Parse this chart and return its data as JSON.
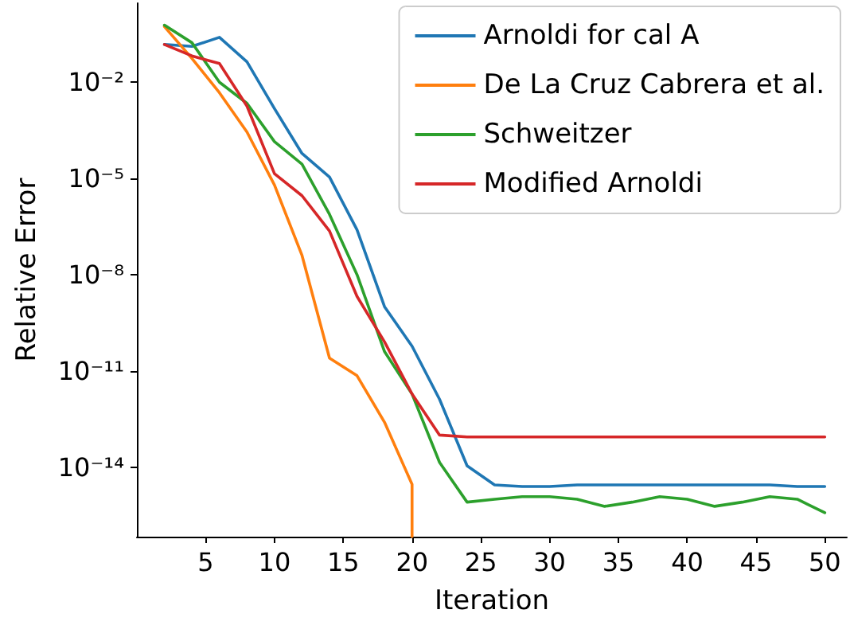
{
  "chart_data": {
    "type": "line",
    "xlabel": "Iteration",
    "ylabel": "Relative Error",
    "log": "y",
    "legend": "top right",
    "grid": false,
    "marker": "none",
    "line_style": "solid",
    "x": [
      2,
      4,
      6,
      8,
      10,
      12,
      14,
      16,
      18,
      20,
      22,
      24,
      26,
      28,
      30,
      32,
      34,
      36,
      38,
      40,
      42,
      44,
      46,
      48,
      50
    ],
    "xlim": [
      0,
      51.6
    ],
    "xticks": [
      5,
      10,
      15,
      20,
      25,
      30,
      35,
      40,
      45,
      50
    ],
    "ylim": [
      6.8e-17,
      2.9
    ],
    "yticks": [
      {
        "value": 0.01,
        "label": "10⁻²"
      },
      {
        "value": 1e-05,
        "label": "10⁻⁵"
      },
      {
        "value": 1e-08,
        "label": "10⁻⁸"
      },
      {
        "value": 1e-11,
        "label": "10⁻¹¹"
      },
      {
        "value": 1e-14,
        "label": "10⁻¹⁴"
      }
    ],
    "series": [
      {
        "name": "Arnoldi for cal A",
        "color": "#1f77b4",
        "values": [
          0.15,
          0.13,
          0.25,
          0.043,
          0.0015,
          6e-05,
          1.1e-05,
          2.5e-07,
          1e-09,
          5.9e-11,
          1.3e-12,
          1.1e-14,
          2.8e-15,
          2.5e-15,
          2.5e-15,
          2.8e-15,
          2.8e-15,
          2.8e-15,
          2.8e-15,
          2.8e-15,
          2.8e-15,
          2.8e-15,
          2.8e-15,
          2.5e-15,
          2.5e-15
        ]
      },
      {
        "name": "De La Cruz Cabrera et al.",
        "color": "#ff7f0e",
        "x": [
          2,
          4,
          6,
          8,
          10,
          12,
          14,
          16,
          18,
          20,
          20
        ],
        "values": [
          0.54,
          0.055,
          0.0047,
          0.00028,
          6.2e-06,
          4e-08,
          2.5e-11,
          7.1e-12,
          2.5e-13,
          2.9e-15,
          6.8e-17
        ]
      },
      {
        "name": "Schweitzer",
        "color": "#2ca02c",
        "values": [
          0.6,
          0.17,
          0.01,
          0.0022,
          0.00014,
          2.8e-05,
          7.6e-07,
          1e-08,
          4e-11,
          1.9e-12,
          1.4e-14,
          8.1e-16,
          1e-15,
          1.2e-15,
          1.2e-15,
          1e-15,
          6e-16,
          8.1e-16,
          1.2e-15,
          1e-15,
          6e-16,
          8.1e-16,
          1.2e-15,
          1e-15,
          3.8e-16
        ]
      },
      {
        "name": "Modified Arnoldi",
        "color": "#d62728",
        "values": [
          0.15,
          0.066,
          0.038,
          0.0018,
          1.4e-05,
          2.9e-06,
          2.3e-07,
          2.1e-09,
          8e-11,
          1.9e-12,
          1e-13,
          8.7e-14,
          8.7e-14,
          8.7e-14,
          8.7e-14,
          8.7e-14,
          8.7e-14,
          8.7e-14,
          8.7e-14,
          8.7e-14,
          8.7e-14,
          8.7e-14,
          8.7e-14,
          8.7e-14,
          8.7e-14
        ]
      }
    ]
  }
}
